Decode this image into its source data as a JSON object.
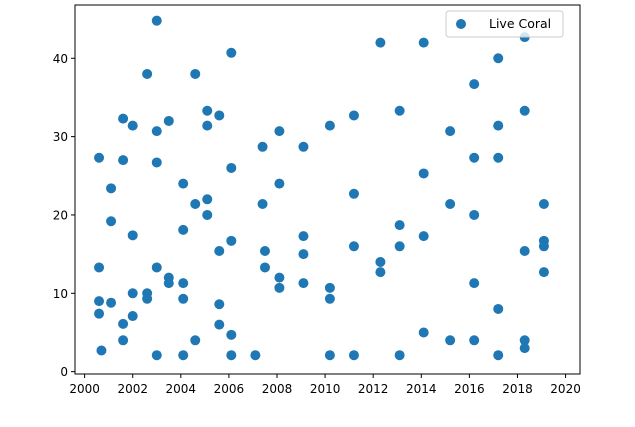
{
  "chart_data": {
    "type": "scatter",
    "title": "",
    "xlabel": "",
    "ylabel": "",
    "xlim": [
      1999.6,
      2020.6
    ],
    "ylim": [
      -0.3,
      46.8
    ],
    "xticks": [
      2000,
      2002,
      2004,
      2006,
      2008,
      2010,
      2012,
      2014,
      2016,
      2018,
      2020
    ],
    "yticks": [
      0,
      10,
      20,
      30,
      40
    ],
    "grid": false,
    "legend_position": "top-right",
    "series": [
      {
        "name": "Live Coral",
        "color": "#1f77b4",
        "marker": "circle",
        "points": [
          [
            2000.6,
            27.3
          ],
          [
            2000.6,
            13.3
          ],
          [
            2000.6,
            9.0
          ],
          [
            2000.6,
            7.4
          ],
          [
            2000.7,
            2.7
          ],
          [
            2001.1,
            23.4
          ],
          [
            2001.1,
            19.2
          ],
          [
            2001.1,
            8.8
          ],
          [
            2001.6,
            32.3
          ],
          [
            2001.6,
            27.0
          ],
          [
            2001.6,
            6.1
          ],
          [
            2001.6,
            4.0
          ],
          [
            2002.0,
            31.4
          ],
          [
            2002.0,
            17.4
          ],
          [
            2002.0,
            10.0
          ],
          [
            2002.0,
            7.1
          ],
          [
            2002.6,
            38.0
          ],
          [
            2002.6,
            10.0
          ],
          [
            2002.6,
            9.3
          ],
          [
            2003.0,
            44.8
          ],
          [
            2003.0,
            30.7
          ],
          [
            2003.0,
            26.7
          ],
          [
            2003.0,
            13.3
          ],
          [
            2003.0,
            2.1
          ],
          [
            2003.5,
            32.0
          ],
          [
            2003.5,
            12.0
          ],
          [
            2003.5,
            11.3
          ],
          [
            2004.1,
            24.0
          ],
          [
            2004.1,
            18.1
          ],
          [
            2004.1,
            11.3
          ],
          [
            2004.1,
            9.3
          ],
          [
            2004.1,
            2.1
          ],
          [
            2004.6,
            38.0
          ],
          [
            2004.6,
            21.4
          ],
          [
            2004.6,
            4.0
          ],
          [
            2005.1,
            33.3
          ],
          [
            2005.1,
            31.4
          ],
          [
            2005.1,
            22.0
          ],
          [
            2005.1,
            20.0
          ],
          [
            2005.6,
            32.7
          ],
          [
            2005.6,
            15.4
          ],
          [
            2005.6,
            8.6
          ],
          [
            2005.6,
            6.0
          ],
          [
            2006.1,
            40.7
          ],
          [
            2006.1,
            26.0
          ],
          [
            2006.1,
            16.7
          ],
          [
            2006.1,
            4.7
          ],
          [
            2006.1,
            2.1
          ],
          [
            2007.1,
            2.1
          ],
          [
            2007.4,
            28.7
          ],
          [
            2007.4,
            21.4
          ],
          [
            2007.5,
            15.4
          ],
          [
            2007.5,
            13.3
          ],
          [
            2008.1,
            30.7
          ],
          [
            2008.1,
            24.0
          ],
          [
            2008.1,
            12.0
          ],
          [
            2008.1,
            10.7
          ],
          [
            2009.1,
            28.7
          ],
          [
            2009.1,
            17.3
          ],
          [
            2009.1,
            15.0
          ],
          [
            2009.1,
            11.3
          ],
          [
            2010.2,
            31.4
          ],
          [
            2010.2,
            10.7
          ],
          [
            2010.2,
            9.3
          ],
          [
            2010.2,
            2.1
          ],
          [
            2011.2,
            32.7
          ],
          [
            2011.2,
            22.7
          ],
          [
            2011.2,
            16.0
          ],
          [
            2011.2,
            2.1
          ],
          [
            2012.3,
            42.0
          ],
          [
            2012.3,
            14.0
          ],
          [
            2012.3,
            12.7
          ],
          [
            2013.1,
            33.3
          ],
          [
            2013.1,
            18.7
          ],
          [
            2013.1,
            16.0
          ],
          [
            2013.1,
            2.1
          ],
          [
            2014.1,
            42.0
          ],
          [
            2014.1,
            25.3
          ],
          [
            2014.1,
            17.3
          ],
          [
            2014.1,
            5.0
          ],
          [
            2015.2,
            30.7
          ],
          [
            2015.2,
            21.4
          ],
          [
            2015.2,
            4.0
          ],
          [
            2016.2,
            36.7
          ],
          [
            2016.2,
            27.3
          ],
          [
            2016.2,
            20.0
          ],
          [
            2016.2,
            11.3
          ],
          [
            2016.2,
            4.0
          ],
          [
            2017.2,
            40.0
          ],
          [
            2017.2,
            31.4
          ],
          [
            2017.2,
            27.3
          ],
          [
            2017.2,
            8.0
          ],
          [
            2017.2,
            2.1
          ],
          [
            2018.3,
            42.7
          ],
          [
            2018.3,
            33.3
          ],
          [
            2018.3,
            15.4
          ],
          [
            2018.3,
            4.0
          ],
          [
            2018.3,
            3.0
          ],
          [
            2019.1,
            21.4
          ],
          [
            2019.1,
            16.7
          ],
          [
            2019.1,
            16.0
          ],
          [
            2019.1,
            12.7
          ]
        ]
      }
    ]
  }
}
